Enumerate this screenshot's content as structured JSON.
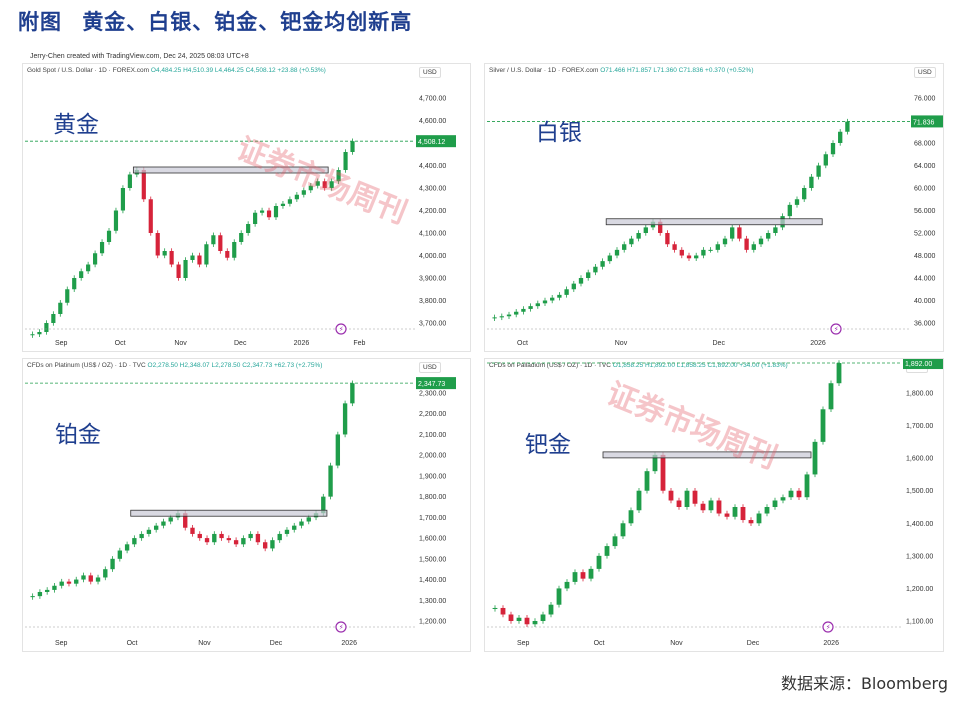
{
  "header": {
    "figure_label": "附图",
    "title": "黄金、白银、铂金、钯金均创新高"
  },
  "credit": "Jerry-Chen created with TradingView.com, Dec 24, 2025 08:03 UTC+8",
  "watermark": "证券市场周刊",
  "source": "数据来源：Bloomberg",
  "chart_data": [
    {
      "type": "candlestick",
      "metal": "黄金",
      "symbol_title": "Gold Spot / U.S. Dollar · 1D · FOREX.com",
      "ohlc": "O4,484.25  H4,510.39  L4,464.25  C4,508.12  +23.88 (+0.53%)",
      "currency": "USD",
      "last_label": "4,508.12",
      "y_ticks": [
        "3,700.00",
        "3,800.00",
        "3,900.00",
        "4,000.00",
        "4,100.00",
        "4,200.00",
        "4,300.00",
        "4,400.00",
        "4,500.00",
        "4,600.00",
        "4,700.00"
      ],
      "x_ticks": [
        "Sep",
        "Oct",
        "Nov",
        "Dec",
        "2026",
        "Feb"
      ],
      "path": [
        3650,
        3660,
        3700,
        3740,
        3790,
        3850,
        3900,
        3930,
        3960,
        4010,
        4060,
        4110,
        4200,
        4300,
        4360,
        4380,
        4250,
        4100,
        4000,
        4020,
        3960,
        3900,
        3980,
        4000,
        3960,
        4050,
        4090,
        4020,
        3990,
        4060,
        4100,
        4140,
        4190,
        4200,
        4170,
        4220,
        4230,
        4250,
        4270,
        4290,
        4310,
        4330,
        4300,
        4330,
        4380,
        4460,
        4508
      ],
      "resistance": 4380,
      "current": 4508.12
    },
    {
      "type": "candlestick",
      "metal": "白银",
      "symbol_title": "Silver / U.S. Dollar · 1D · FOREX.com",
      "ohlc": "O71.466  H71.857  L71.360  C71.836  +0.370 (+0.52%)",
      "currency": "USD",
      "last_label": "71.836",
      "y_ticks": [
        "36.000",
        "40.000",
        "44.000",
        "48.000",
        "52.000",
        "56.000",
        "60.000",
        "64.000",
        "68.000",
        "72.000",
        "76.000"
      ],
      "x_ticks": [
        "Oct",
        "Nov",
        "Dec",
        "2026"
      ],
      "path": [
        37,
        37.2,
        37.5,
        38,
        38.5,
        39,
        39.5,
        40,
        40.5,
        41,
        42,
        43,
        44,
        45,
        46,
        47,
        48,
        49,
        50,
        51,
        52,
        53,
        54,
        52,
        50,
        49,
        48,
        47.5,
        48,
        49,
        49,
        50,
        51,
        53,
        51,
        49,
        50,
        51,
        52,
        53,
        55,
        57,
        58,
        60,
        62,
        64,
        66,
        68,
        70,
        71.8
      ],
      "resistance": 54,
      "current": 71.836
    },
    {
      "type": "candlestick",
      "metal": "铂金",
      "symbol_title": "CFDs on Platinum (US$ / OZ) · 1D · TVC",
      "ohlc": "O2,278.50  H2,348.07  L2,278.50  C2,347.73  +62.73 (+2.75%)",
      "currency": "USD",
      "last_label": "2,347.73",
      "y_ticks": [
        "1,200.00",
        "1,300.00",
        "1,400.00",
        "1,500.00",
        "1,600.00",
        "1,700.00",
        "1,800.00",
        "1,900.00",
        "2,000.00",
        "2,100.00",
        "2,200.00",
        "2,300.00"
      ],
      "x_ticks": [
        "Sep",
        "Oct",
        "Nov",
        "Dec",
        "2026"
      ],
      "path": [
        1320,
        1340,
        1350,
        1370,
        1390,
        1380,
        1400,
        1420,
        1390,
        1410,
        1450,
        1500,
        1540,
        1570,
        1600,
        1620,
        1640,
        1660,
        1680,
        1700,
        1720,
        1650,
        1620,
        1600,
        1580,
        1620,
        1600,
        1590,
        1570,
        1600,
        1620,
        1580,
        1550,
        1590,
        1620,
        1640,
        1660,
        1680,
        1700,
        1720,
        1800,
        1950,
        2100,
        2250,
        2347
      ],
      "resistance": 1720,
      "current": 2347.73
    },
    {
      "type": "candlestick",
      "metal": "钯金",
      "symbol_title": "CFDs on Palladium (US$ / OZ) · 1D · TVC",
      "ohlc": "O1,858.25  H1,892.00  L1,858.25  C1,892.00  +34.00 (+1.83%)",
      "currency": "USD",
      "last_label": "1,892.00",
      "y_ticks": [
        "1,100.00",
        "1,200.00",
        "1,300.00",
        "1,400.00",
        "1,500.00",
        "1,600.00",
        "1,700.00",
        "1,800.00"
      ],
      "x_ticks": [
        "Sep",
        "Oct",
        "Nov",
        "Dec",
        "2026"
      ],
      "path": [
        1140,
        1120,
        1100,
        1110,
        1090,
        1100,
        1120,
        1150,
        1200,
        1220,
        1250,
        1230,
        1260,
        1300,
        1330,
        1360,
        1400,
        1440,
        1500,
        1560,
        1610,
        1500,
        1470,
        1450,
        1500,
        1460,
        1440,
        1470,
        1430,
        1420,
        1450,
        1410,
        1400,
        1430,
        1450,
        1470,
        1480,
        1500,
        1480,
        1550,
        1650,
        1750,
        1830,
        1892
      ],
      "resistance": 1610,
      "current": 1892.0
    }
  ]
}
